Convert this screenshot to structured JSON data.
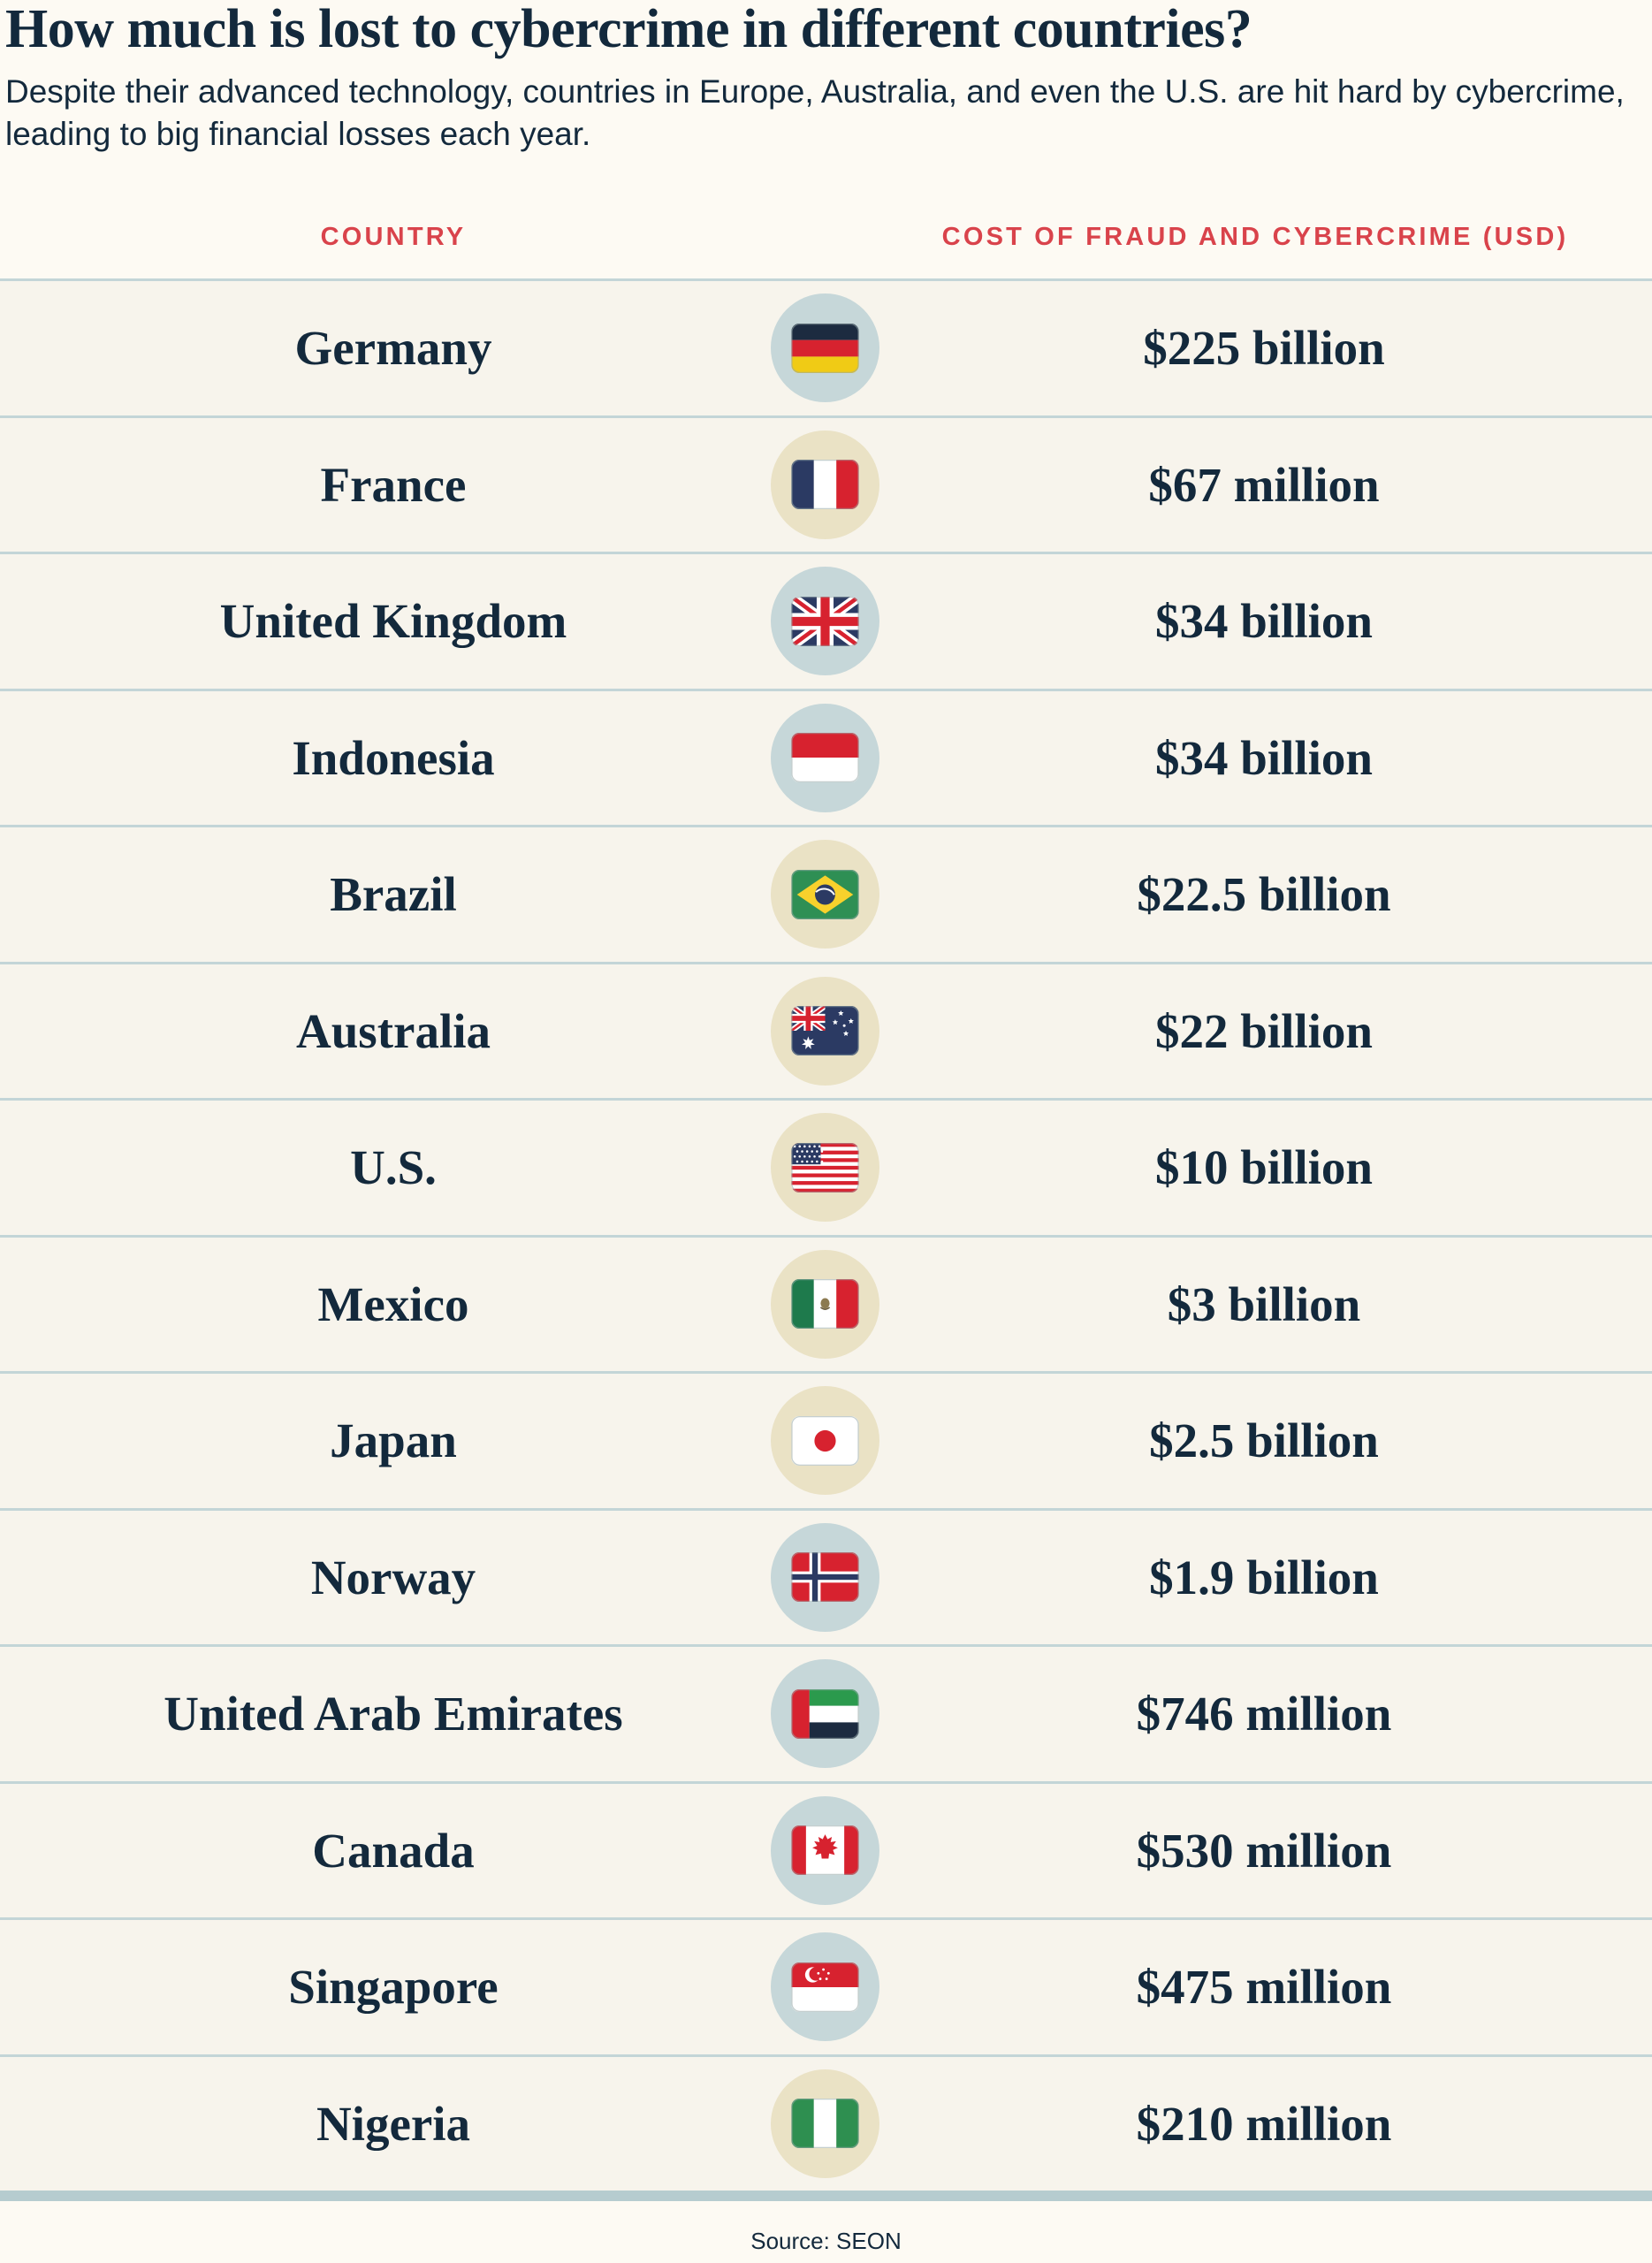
{
  "page": {
    "title": "How much is lost to cybercrime in different countries?",
    "subtitle": "Despite their advanced technology, countries in Europe, Australia, and even the U.S. are hit hard by cybercrime, leading to big financial losses each year.",
    "source": "Source: SEON"
  },
  "table": {
    "columns": {
      "country": "COUNTRY",
      "cost": "COST OF FRAUD AND CYBERCRIME (USD)"
    },
    "rows": [
      {
        "country": "Germany",
        "cost": "$225 billion",
        "flag": "germany",
        "circle": "blue"
      },
      {
        "country": "France",
        "cost": "$67 million",
        "flag": "france",
        "circle": "cream"
      },
      {
        "country": "United Kingdom",
        "cost": "$34 billion",
        "flag": "uk",
        "circle": "blue"
      },
      {
        "country": "Indonesia",
        "cost": "$34 billion",
        "flag": "indonesia",
        "circle": "blue"
      },
      {
        "country": "Brazil",
        "cost": "$22.5 billion",
        "flag": "brazil",
        "circle": "cream"
      },
      {
        "country": "Australia",
        "cost": "$22 billion",
        "flag": "australia",
        "circle": "cream"
      },
      {
        "country": "U.S.",
        "cost": "$10 billion",
        "flag": "us",
        "circle": "cream"
      },
      {
        "country": "Mexico",
        "cost": "$3 billion",
        "flag": "mexico",
        "circle": "cream"
      },
      {
        "country": "Japan",
        "cost": "$2.5 billion",
        "flag": "japan",
        "circle": "cream"
      },
      {
        "country": "Norway",
        "cost": "$1.9 billion",
        "flag": "norway",
        "circle": "blue"
      },
      {
        "country": "United Arab Emirates",
        "cost": "$746 million",
        "flag": "uae",
        "circle": "blue"
      },
      {
        "country": "Canada",
        "cost": "$530 million",
        "flag": "canada",
        "circle": "blue"
      },
      {
        "country": "Singapore",
        "cost": "$475 million",
        "flag": "singapore",
        "circle": "blue"
      },
      {
        "country": "Nigeria",
        "cost": "$210 million",
        "flag": "nigeria",
        "circle": "cream"
      }
    ]
  },
  "colors": {
    "background": "#fdfaf3",
    "row_background": "#f7f4ec",
    "navy_text": "#13293c",
    "header_red": "#d9434b",
    "divider_line": "#c3d5d7",
    "connector_line": "#c9dadc",
    "bottom_bar": "#b6cccf",
    "circle_blue": "#c6d7d9",
    "circle_cream": "#eae2c5"
  },
  "chart_data": {
    "type": "table",
    "title": "How much is lost to cybercrime in different countries?",
    "subtitle": "Despite their advanced technology, countries in Europe, Australia, and even the U.S. are hit hard by cybercrime, leading to big financial losses each year.",
    "columns": [
      "COUNTRY",
      "COST OF FRAUD AND CYBERCRIME (USD)"
    ],
    "categories": [
      "Germany",
      "France",
      "United Kingdom",
      "Indonesia",
      "Brazil",
      "Australia",
      "U.S.",
      "Mexico",
      "Japan",
      "Norway",
      "United Arab Emirates",
      "Canada",
      "Singapore",
      "Nigeria"
    ],
    "values_display": [
      "$225 billion",
      "$67 million",
      "$34 billion",
      "$34 billion",
      "$22.5 billion",
      "$22 billion",
      "$10 billion",
      "$3 billion",
      "$2.5 billion",
      "$1.9 billion",
      "$746 million",
      "$530 million",
      "$475 million",
      "$210 million"
    ],
    "values_usd": [
      225000000000,
      67000000,
      34000000000,
      34000000000,
      22500000000,
      22000000000,
      10000000000,
      3000000000,
      2500000000,
      1900000000,
      746000000,
      530000000,
      475000000,
      210000000
    ],
    "source": "Source: SEON"
  }
}
